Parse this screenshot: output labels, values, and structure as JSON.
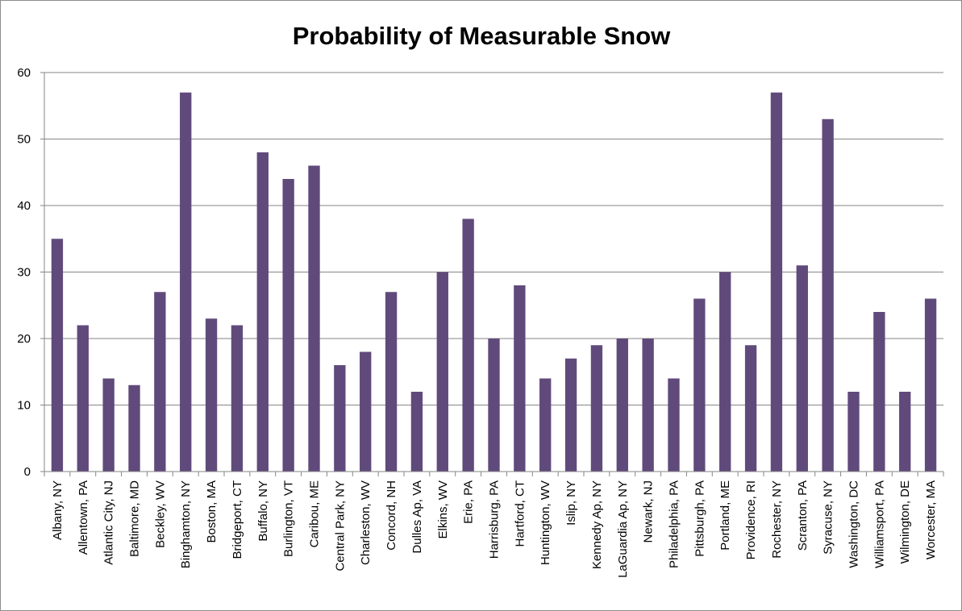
{
  "chart_data": {
    "type": "bar",
    "title": "Probability of Measurable Snow",
    "xlabel": "",
    "ylabel": "",
    "ylim": [
      0,
      60
    ],
    "yticks": [
      0,
      10,
      20,
      30,
      40,
      50,
      60
    ],
    "grid": true,
    "legend": "none",
    "bar_color": "#604a7b",
    "categories": [
      "Albany, NY",
      "Allentown, PA",
      "Atlantic City, NJ",
      "Baltimore, MD",
      "Beckley, WV",
      "Binghamton, NY",
      "Boston, MA",
      "Bridgeport, CT",
      "Buffalo, NY",
      "Burlington, VT",
      "Caribou, ME",
      "Central Park, NY",
      "Charleston, WV",
      "Concord, NH",
      "Dulles Ap, VA",
      "Elkins, WV",
      "Erie, PA",
      "Harrisburg, PA",
      "Hartford, CT",
      "Huntington, WV",
      "Islip, NY",
      "Kennedy Ap, NY",
      "LaGuardia Ap, NY",
      "Newark, NJ",
      "Philadelphia, PA",
      "Pittsburgh, PA",
      "Portland, ME",
      "Providence, RI",
      "Rochester, NY",
      "Scranton, PA",
      "Syracuse, NY",
      "Washington, DC",
      "Williamsport, PA",
      "Wilmington, DE",
      "Worcester, MA"
    ],
    "values": [
      35,
      22,
      14,
      13,
      27,
      57,
      23,
      22,
      48,
      44,
      46,
      16,
      18,
      27,
      12,
      30,
      38,
      20,
      28,
      14,
      17,
      19,
      20,
      20,
      14,
      26,
      30,
      19,
      57,
      31,
      53,
      12,
      24,
      12,
      26
    ]
  }
}
